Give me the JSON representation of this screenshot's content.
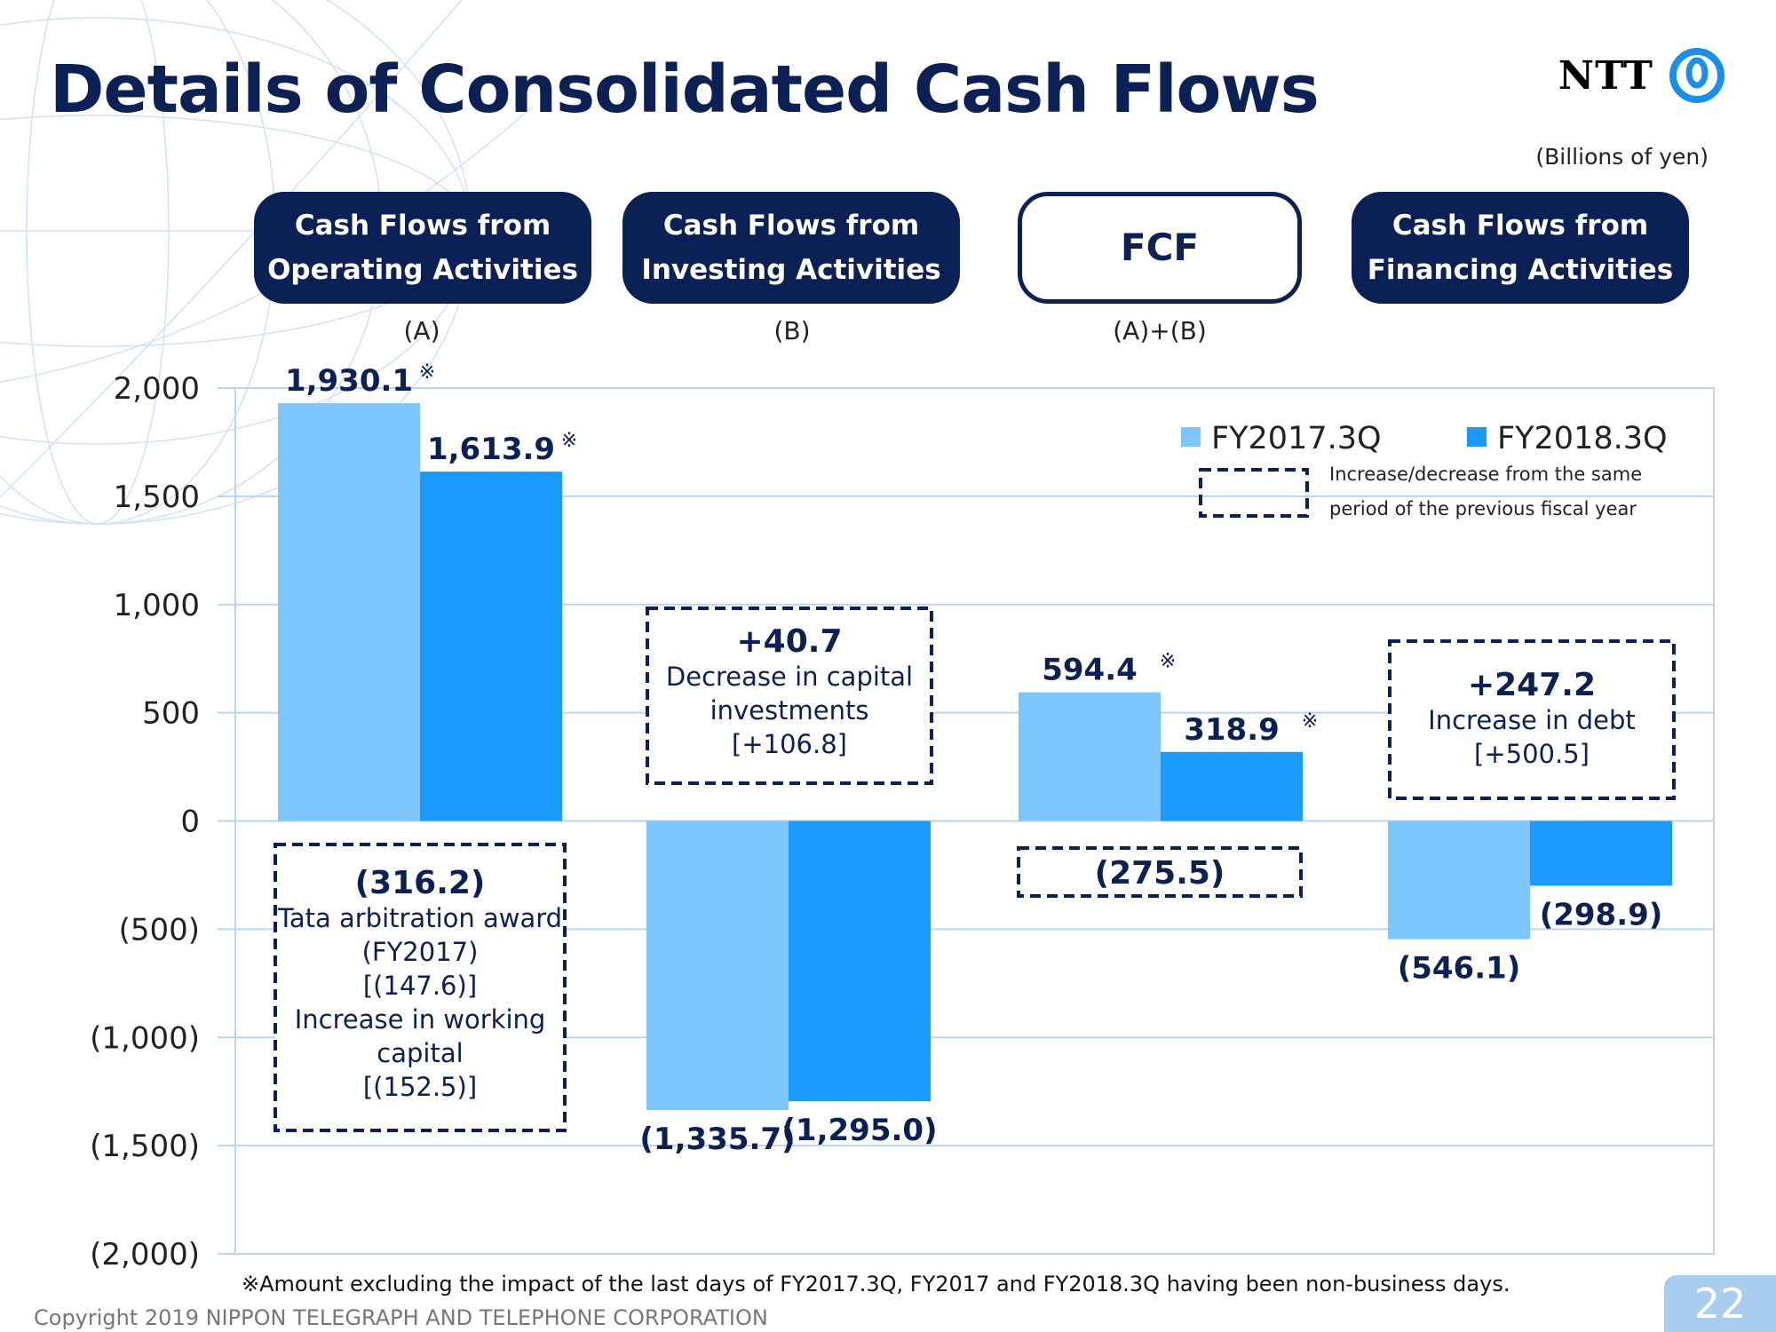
{
  "header": {
    "title": "Details of Consolidated Cash Flows",
    "logo_text": "NTT",
    "unit_note": "(Billions of yen)"
  },
  "categories": [
    {
      "label_line1": "Cash Flows from",
      "label_line2": "Operating Activities",
      "note": "(A)"
    },
    {
      "label_line1": "Cash Flows from",
      "label_line2": "Investing Activities",
      "note": "(B)"
    },
    {
      "label_line1": "FCF",
      "label_line2": "",
      "note": "(A)+(B)"
    },
    {
      "label_line1": "Cash Flows from",
      "label_line2": "Financing Activities",
      "note": ""
    }
  ],
  "chart_data": {
    "type": "bar",
    "categories": [
      "Cash Flows from Operating Activities",
      "Cash Flows from Investing Activities",
      "FCF",
      "Cash Flows from Financing Activities"
    ],
    "series": [
      {
        "name": "FY2017.3Q",
        "values": [
          1930.1,
          -1335.7,
          594.4,
          -546.1
        ],
        "labels": [
          "1,930.1",
          "(1,335.7)",
          "594.4",
          "(546.1)"
        ],
        "marks": [
          "※",
          "",
          "※",
          ""
        ],
        "color": "#7dc6fd"
      },
      {
        "name": "FY2018.3Q",
        "values": [
          1613.9,
          -1295.0,
          318.9,
          -298.9
        ],
        "labels": [
          "1,613.9",
          "(1,295.0)",
          "318.9",
          "(298.9)"
        ],
        "marks": [
          "※",
          "",
          "※",
          ""
        ],
        "color": "#1a9afa"
      }
    ],
    "ylim": [
      -2000,
      2000
    ],
    "yticks": [
      "2,000",
      "1,500",
      "1,000",
      "500",
      "0",
      "(500)",
      "(1,000)",
      "(1,500)",
      "(2,000)"
    ],
    "grid": true,
    "legend_position": "top-right",
    "legend_box_label_line1": "Increase/decrease from the same",
    "legend_box_label_line2": "period of the previous fiscal year",
    "annotations": [
      {
        "category": 0,
        "lines": [
          "(316.2)",
          "Tata arbitration award",
          "(FY2017)",
          "[(147.6)]",
          "Increase in working",
          "capital",
          "[(152.5)]"
        ]
      },
      {
        "category": 1,
        "lines": [
          "+40.7",
          "Decrease in capital",
          "investments",
          "[+106.8]"
        ]
      },
      {
        "category": 2,
        "lines": [
          "(275.5)"
        ]
      },
      {
        "category": 3,
        "lines": [
          "+247.2",
          "Increase in debt",
          "[+500.5]"
        ]
      }
    ]
  },
  "footer": {
    "footnote": "※Amount excluding the impact of the last days of FY2017.3Q, FY2017 and FY2018.3Q having been non-business days.",
    "copyright": "Copyright 2019 NIPPON TELEGRAPH AND TELEPHONE CORPORATION",
    "page_number": "22"
  },
  "colors": {
    "navy": "#0b2155",
    "light_bar": "#7dc6fd",
    "dark_bar": "#1a9afa",
    "grid": "#b8d6f0"
  }
}
